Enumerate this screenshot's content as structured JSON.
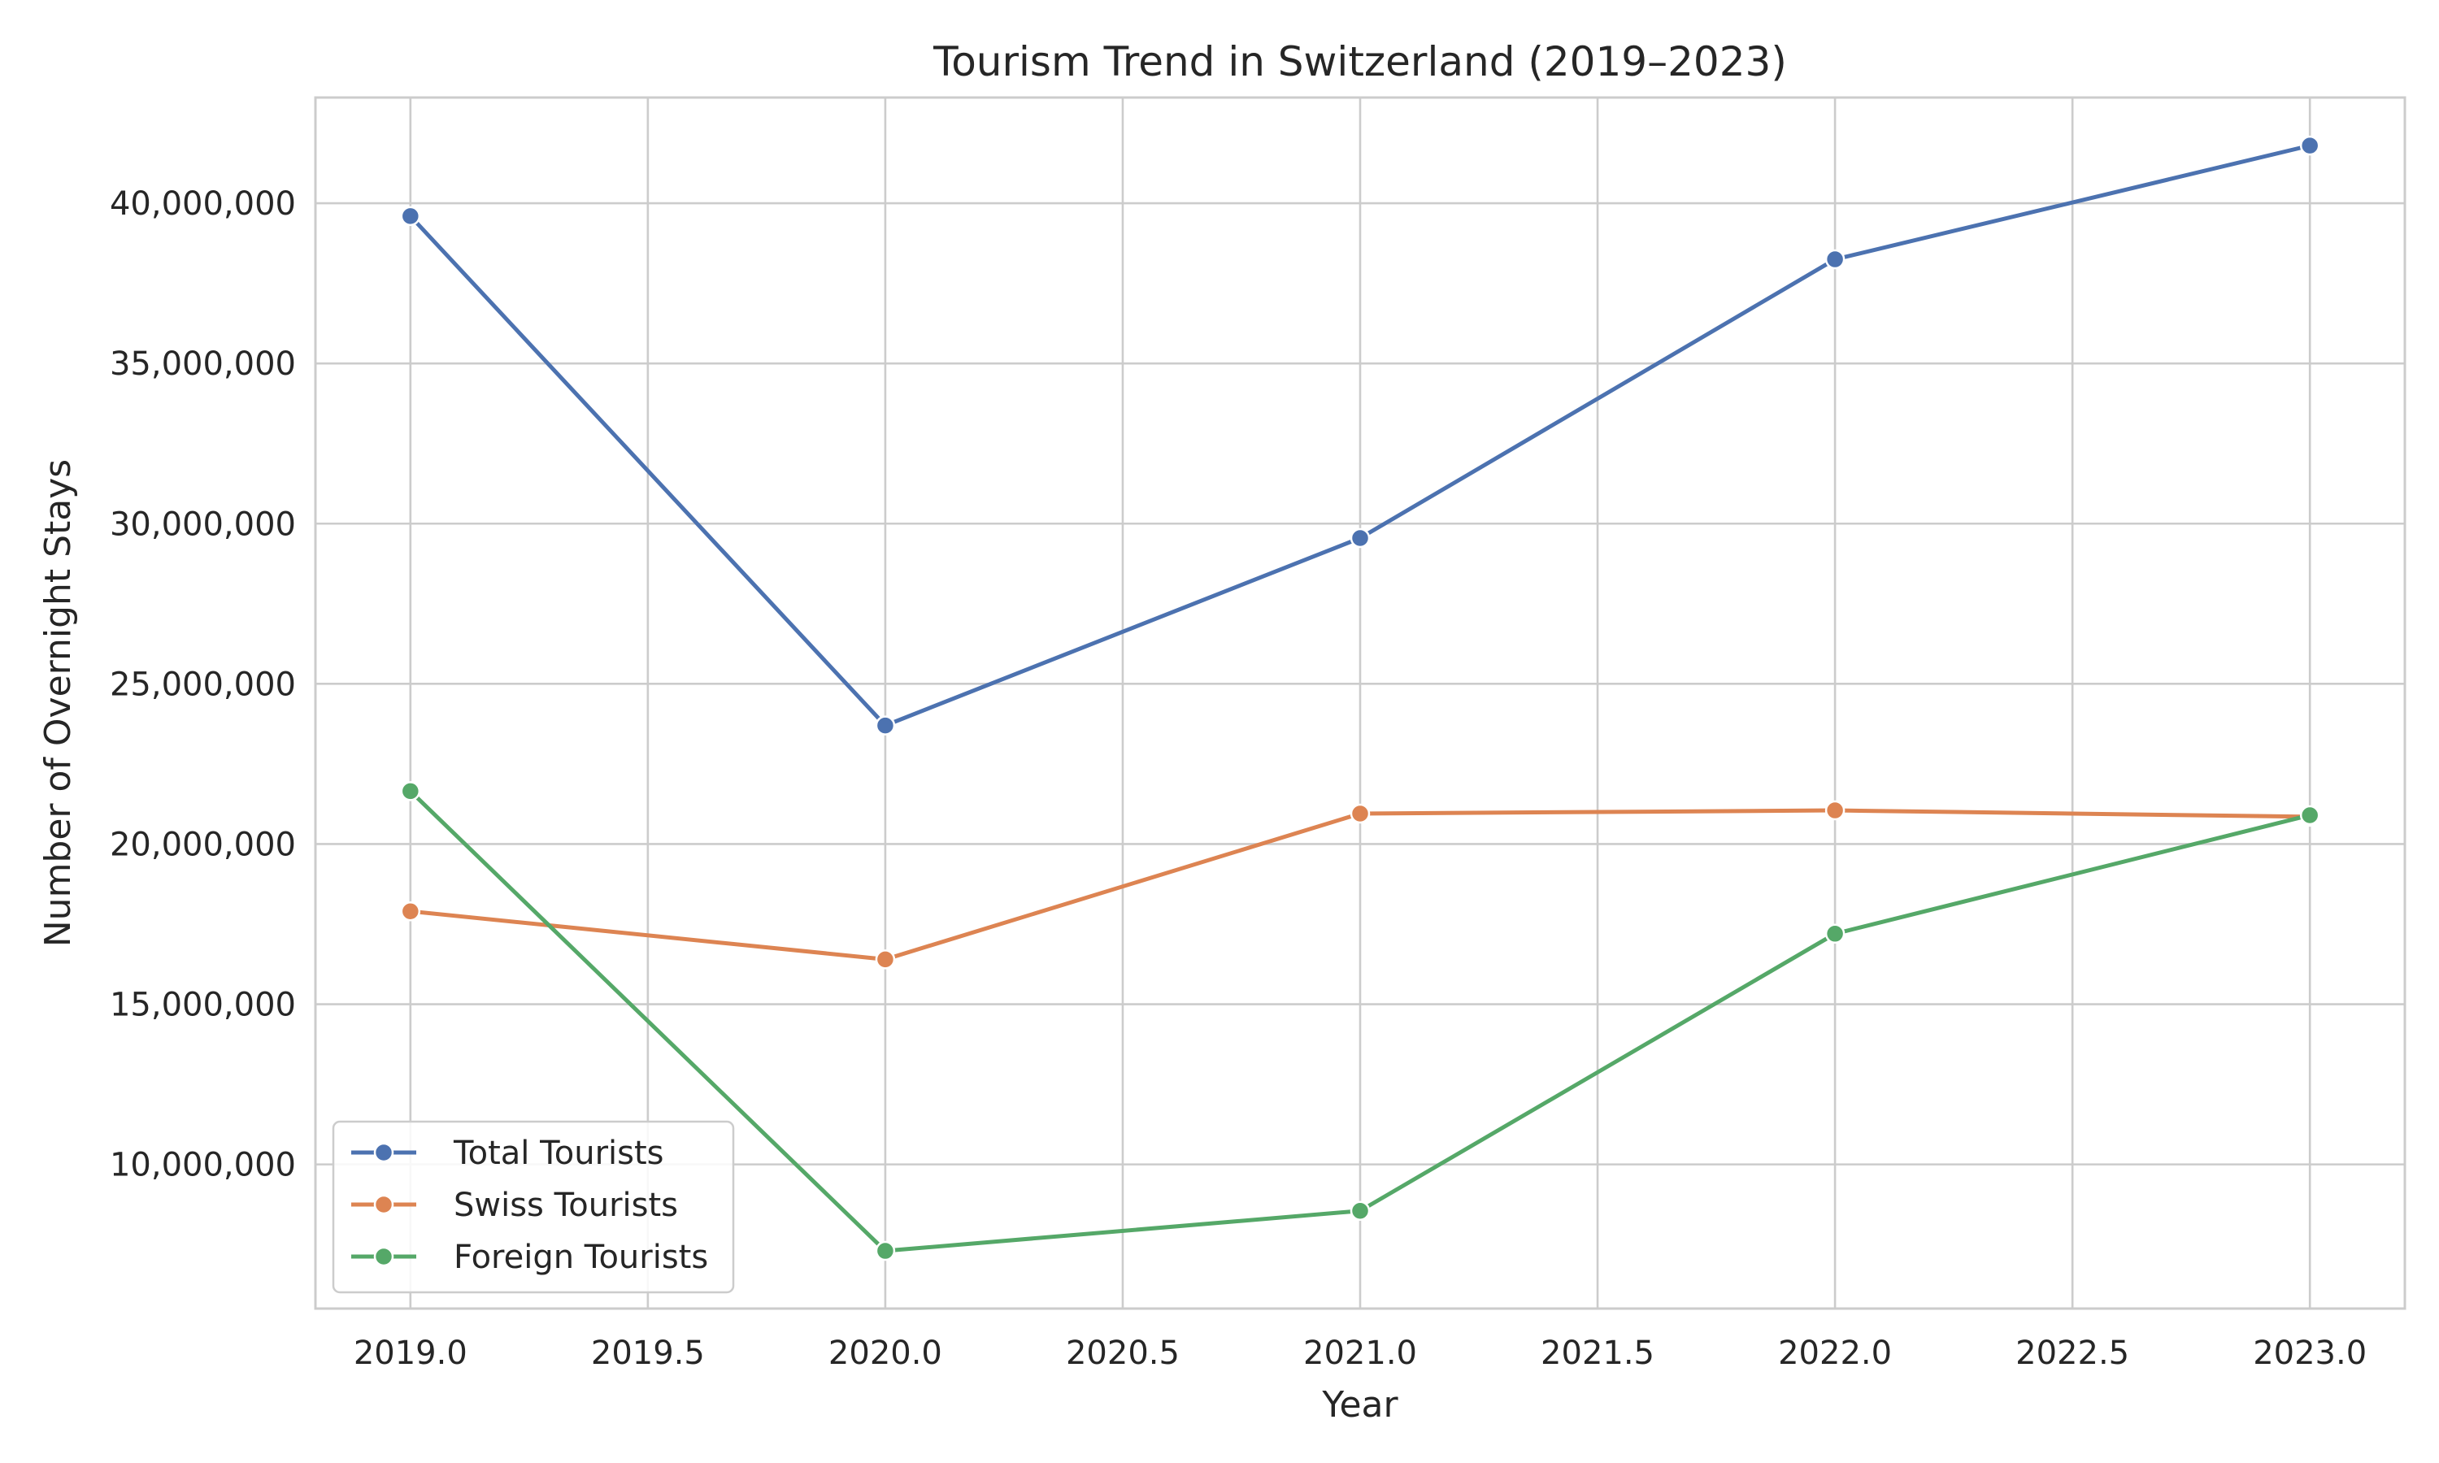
{
  "chart_data": {
    "type": "line",
    "title": "Tourism Trend in Switzerland (2019–2023)",
    "xlabel": "Year",
    "ylabel": "Number of Overnight Stays",
    "x": [
      2019,
      2020,
      2021,
      2022,
      2023
    ],
    "xlim": [
      2018.8,
      2023.2
    ],
    "ylim": [
      5500000,
      43300000
    ],
    "x_ticks": [
      "2019.0",
      "2019.5",
      "2020.0",
      "2020.5",
      "2021.0",
      "2021.5",
      "2022.0",
      "2022.5",
      "2023.0"
    ],
    "y_ticks": [
      "10,000,000",
      "15,000,000",
      "20,000,000",
      "25,000,000",
      "30,000,000",
      "35,000,000",
      "40,000,000"
    ],
    "grid": true,
    "legend_position": "bottom-left",
    "marker": "circle",
    "series": [
      {
        "name": "Total Tourists",
        "color": "#4c72b0",
        "values": [
          39600000,
          23700000,
          29550000,
          38250000,
          41800000
        ]
      },
      {
        "name": "Swiss Tourists",
        "color": "#dd8452",
        "values": [
          17900000,
          16400000,
          20950000,
          21050000,
          20850000
        ]
      },
      {
        "name": "Foreign Tourists",
        "color": "#55a868",
        "values": [
          21650000,
          7300000,
          8550000,
          17200000,
          20900000
        ]
      }
    ]
  }
}
